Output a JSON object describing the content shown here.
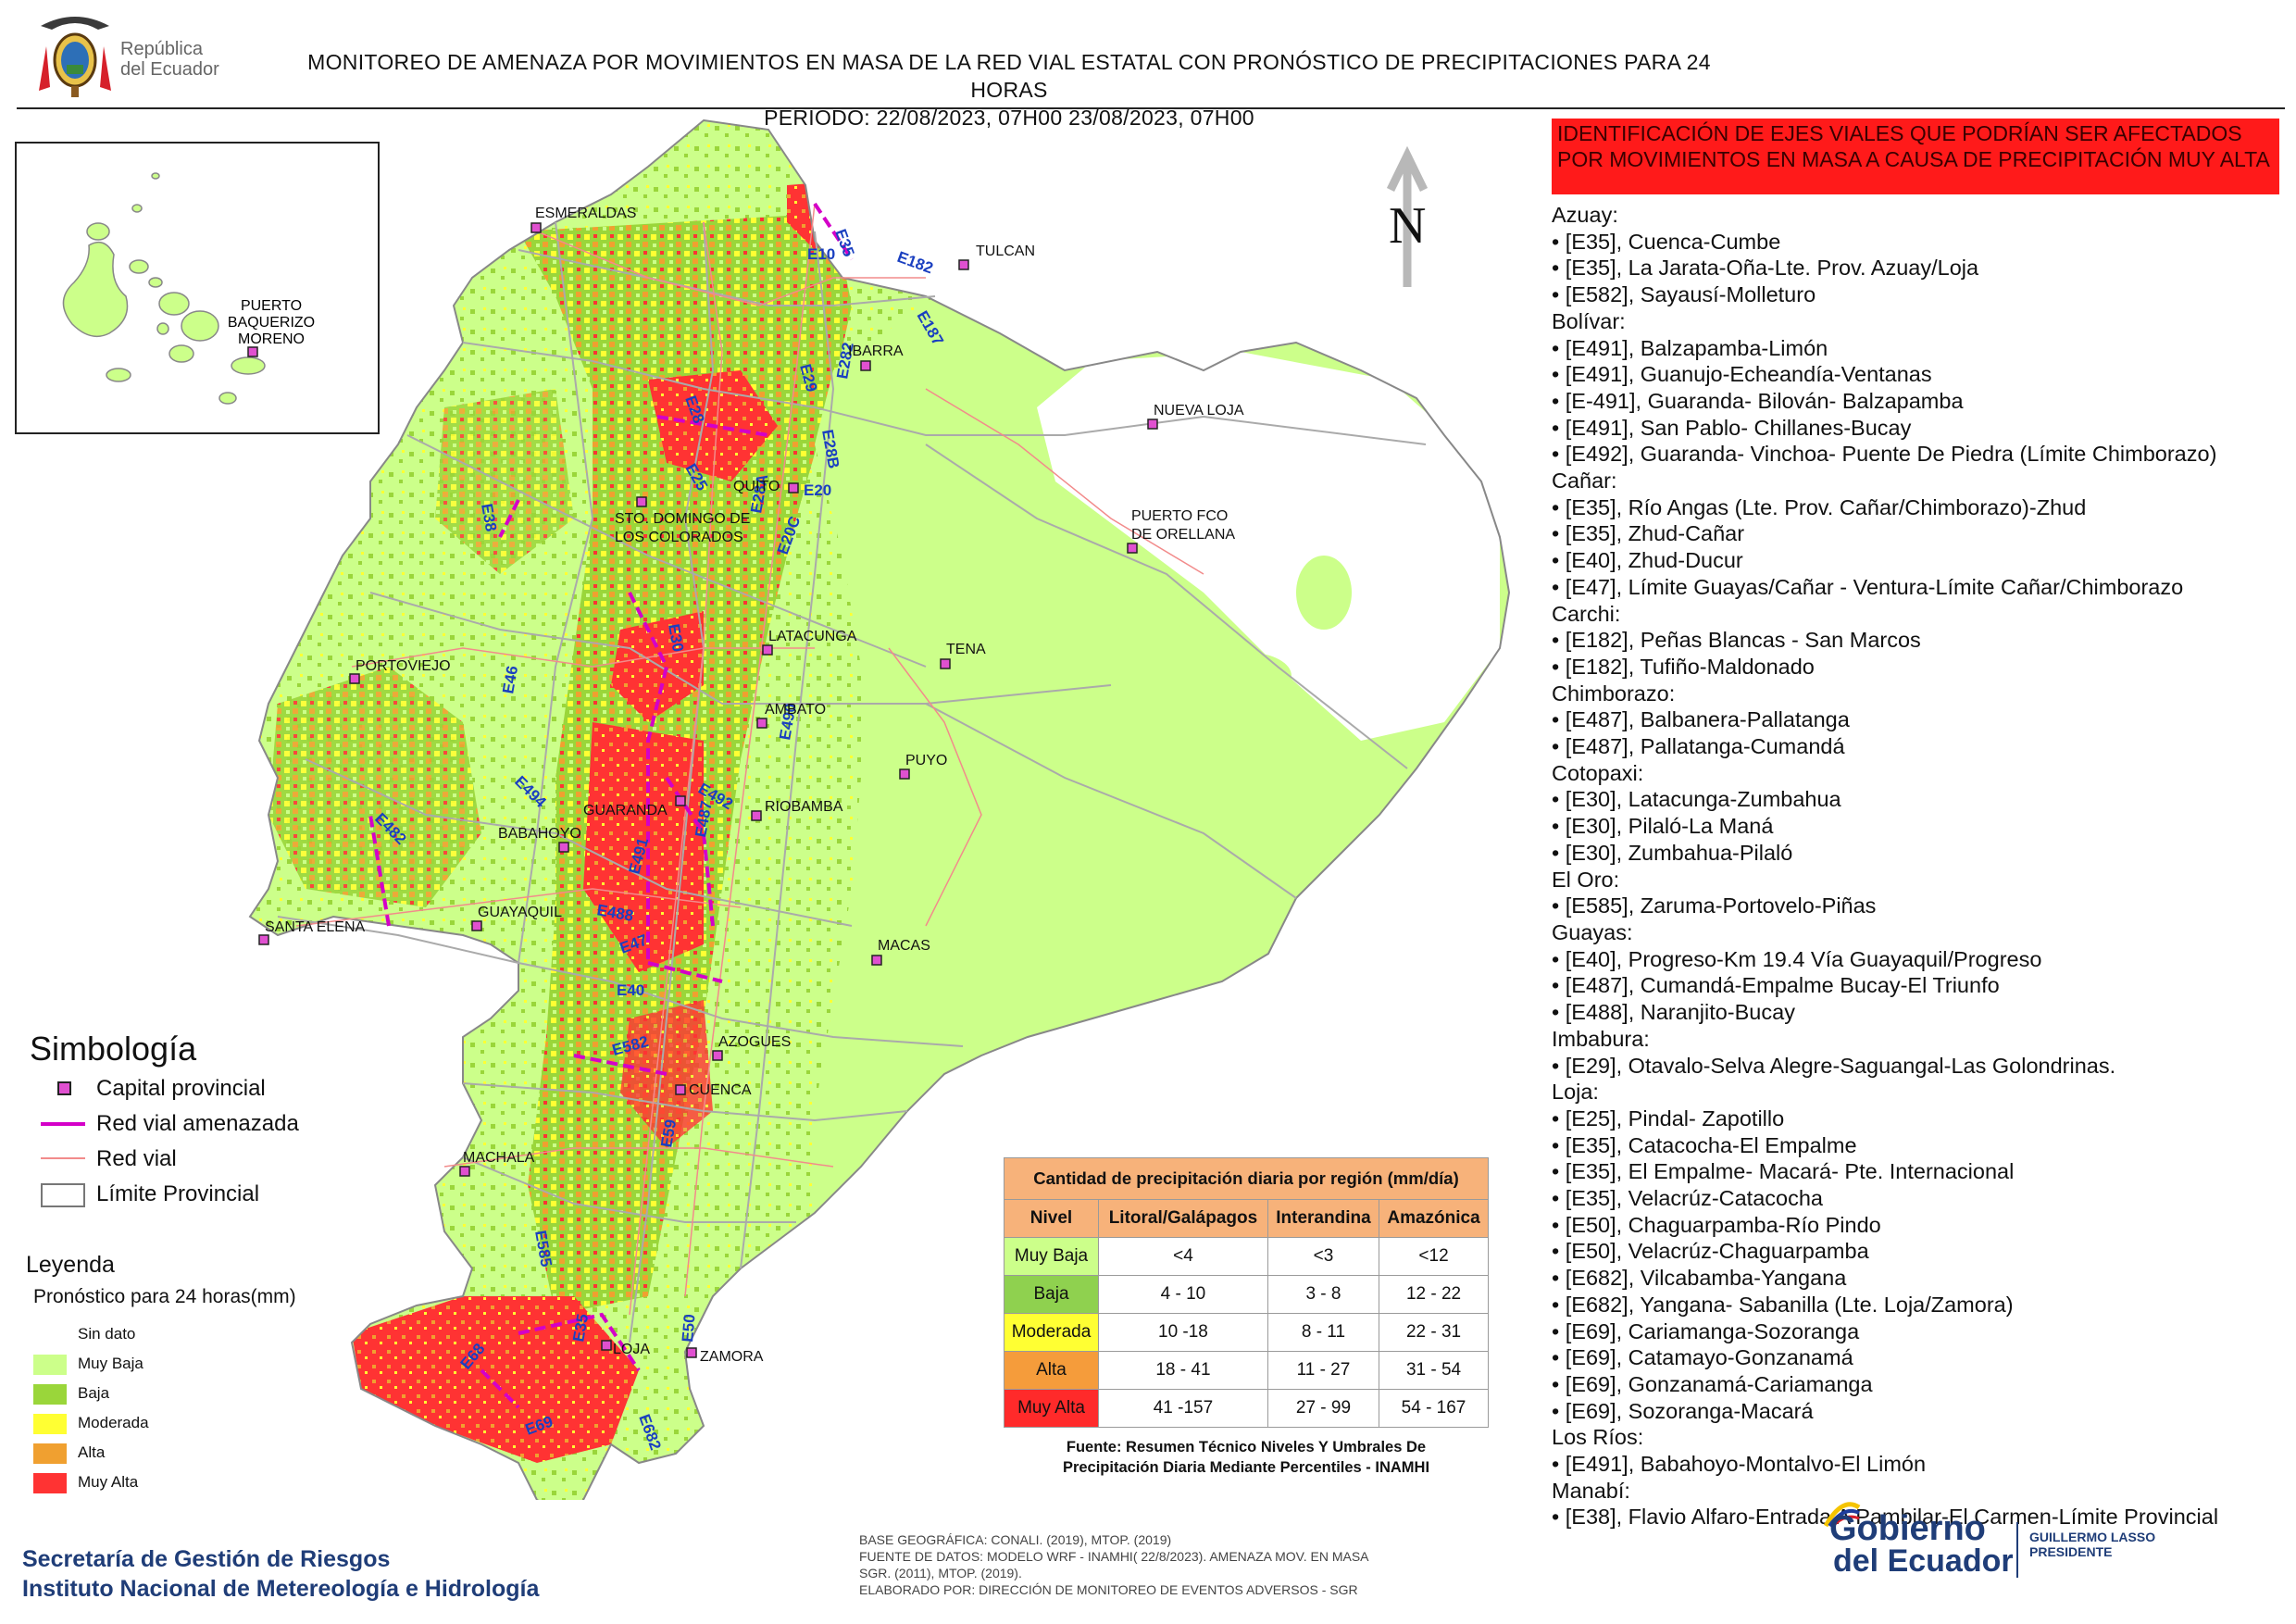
{
  "logo": {
    "line1": "República",
    "line2": "del Ecuador"
  },
  "header": {
    "title": "MONITOREO DE AMENAZA POR MOVIMIENTOS EN MASA DE LA RED VIAL  ESTATAL  CON PRONÓSTICO  DE  PRECIPITACIONES PARA 24 HORAS",
    "period": "PERIODO: 22/08/2023, 07H00 23/08/2023, 07H00"
  },
  "north_label": "N",
  "cities": [
    {
      "name": "ESMERALDAS"
    },
    {
      "name": "TULCAN"
    },
    {
      "name": "IBARRA"
    },
    {
      "name": "NUEVA LOJA"
    },
    {
      "name": "QUITO"
    },
    {
      "name": "STO. DOMINGO DE"
    },
    {
      "name": "LOS COLORADOS"
    },
    {
      "name": "PUERTO FCO"
    },
    {
      "name": "DE ORELLANA"
    },
    {
      "name": "LATACUNGA"
    },
    {
      "name": "TENA"
    },
    {
      "name": "PORTOVIEJO"
    },
    {
      "name": "AMBATO"
    },
    {
      "name": "PUYO"
    },
    {
      "name": "GUARANDA"
    },
    {
      "name": "RIOBAMBA"
    },
    {
      "name": "BABAHOYO"
    },
    {
      "name": "GUAYAQUIL"
    },
    {
      "name": "SANTA ELENA"
    },
    {
      "name": "MACAS"
    },
    {
      "name": "AZOGUES"
    },
    {
      "name": "CUENCA"
    },
    {
      "name": "MACHALA"
    },
    {
      "name": "LOJA"
    },
    {
      "name": "ZAMORA"
    },
    {
      "name": "PUERTO"
    },
    {
      "name": "BAQUERIZO"
    },
    {
      "name": "MORENO"
    }
  ],
  "road_labels": [
    "E10",
    "E182",
    "E187",
    "E35",
    "E29",
    "E28",
    "E282",
    "E28B",
    "E25",
    "E20",
    "E38",
    "E28A",
    "E20C",
    "E30",
    "E46",
    "E494",
    "E482",
    "E492",
    "E490",
    "E487",
    "E491",
    "E488",
    "E47",
    "E40",
    "E582",
    "E59",
    "E585",
    "E50",
    "E69",
    "E682",
    "E68",
    "E35"
  ],
  "symbology": {
    "title": "Simbología",
    "items": [
      {
        "label": "Capital provincial"
      },
      {
        "label": "Red vial amenazada"
      },
      {
        "label": "Red vial"
      },
      {
        "label": "Límite Provincial"
      }
    ]
  },
  "leyenda": {
    "title": "Leyenda",
    "subtitle": "Pronóstico para 24 horas(mm)",
    "items": [
      {
        "label": "Sin dato",
        "color": "#ffffff"
      },
      {
        "label": "Muy Baja",
        "color": "#ccff8a"
      },
      {
        "label": "Baja",
        "color": "#9ad63a"
      },
      {
        "label": "Moderada",
        "color": "#ffff33"
      },
      {
        "label": "Alta",
        "color": "#f0a030"
      },
      {
        "label": "Muy Alta",
        "color": "#ff3333"
      }
    ]
  },
  "precip_table": {
    "caption": "Cantidad de precipitación diaria por región (mm/día)",
    "headers": [
      "Nivel",
      "Litoral/Galápagos",
      "Interandina",
      "Amazónica"
    ],
    "rows": [
      {
        "nivel": "Muy Baja",
        "color": "#ccff8a",
        "litoral": "<4",
        "interandina": "<3",
        "amazonica": "<12"
      },
      {
        "nivel": "Baja",
        "color": "#8fd14f",
        "litoral": "4 - 10",
        "interandina": "3 - 8",
        "amazonica": "12 - 22"
      },
      {
        "nivel": "Moderada",
        "color": "#ffff33",
        "litoral": "10 -18",
        "interandina": "8 - 11",
        "amazonica": "22 - 31"
      },
      {
        "nivel": "Alta",
        "color": "#f59c3b",
        "litoral": "18 - 41",
        "interandina": "11 - 27",
        "amazonica": "31 - 54"
      },
      {
        "nivel": "Muy Alta",
        "color": "#ff2a2a",
        "litoral": "41 -157",
        "interandina": "27 - 99",
        "amazonica": "54 - 167"
      }
    ],
    "source_line1": "Fuente: Resumen Técnico Niveles Y Umbrales De",
    "source_line2": "Precipitación Diaria Mediante Percentiles - INAMHI"
  },
  "alert": {
    "header": "IDENTIFICACIÓN DE EJES VIALES QUE PODRÍAN SER AFECTADOS POR MOVIMIENTOS EN MASA A CAUSA DE PRECIPITACIÓN MUY ALTA"
  },
  "provinces": [
    {
      "name": "Azuay:",
      "roads": [
        "• [E35], Cuenca-Cumbe",
        "• [E35], La Jarata-Oña-Lte. Prov. Azuay/Loja",
        "• [E582], Sayausí-Molleturo"
      ]
    },
    {
      "name": "Bolívar:",
      "roads": [
        "• [E491], Balzapamba-Limón",
        "• [E491], Guanujo-Echeandía-Ventanas",
        "• [E-491], Guaranda- Bilován- Balzapamba",
        "• [E491], San Pablo- Chillanes-Bucay",
        "• [E492], Guaranda- Vinchoa- Puente De Piedra (Límite Chimborazo)"
      ]
    },
    {
      "name": "Cañar:",
      "roads": [
        "• [E35], Río Angas (Lte. Prov. Cañar/Chimborazo)-Zhud",
        "• [E35], Zhud-Cañar",
        "• [E40], Zhud-Ducur",
        "• [E47], Límite Guayas/Cañar - Ventura-Límite Cañar/Chimborazo"
      ]
    },
    {
      "name": "Carchi:",
      "roads": [
        "• [E182], Peñas Blancas - San Marcos",
        "• [E182], Tufiño-Maldonado"
      ]
    },
    {
      "name": "Chimborazo:",
      "roads": [
        "• [E487], Balbanera-Pallatanga",
        "• [E487], Pallatanga-Cumandá"
      ]
    },
    {
      "name": "Cotopaxi:",
      "roads": [
        "• [E30], Latacunga-Zumbahua",
        "• [E30], Pilaló-La Maná",
        "• [E30], Zumbahua-Pilaló"
      ]
    },
    {
      "name": "El Oro:",
      "roads": [
        "• [E585], Zaruma-Portovelo-Piñas"
      ]
    },
    {
      "name": "Guayas:",
      "roads": [
        "• [E40], Progreso-Km 19.4 Vía Guayaquil/Progreso",
        "• [E487], Cumandá-Empalme Bucay-El Triunfo",
        "• [E488], Naranjito-Bucay"
      ]
    },
    {
      "name": "Imbabura:",
      "roads": [
        "• [E29], Otavalo-Selva Alegre-Saguangal-Las Golondrinas."
      ]
    },
    {
      "name": "Loja:",
      "roads": [
        "• [E25], Pindal- Zapotillo",
        "• [E35], Catacocha-El Empalme",
        "• [E35], El Empalme- Macará- Pte. Internacional",
        "• [E35], Velacrúz-Catacocha",
        "• [E50], Chaguarpamba-Río Pindo",
        "• [E50], Velacrúz-Chaguarpamba",
        "• [E682], Vilcabamba-Yangana",
        "• [E682], Yangana- Sabanilla (Lte. Loja/Zamora)",
        "• [E69], Cariamanga-Sozoranga",
        "• [E69], Catamayo-Gonzanamá",
        "• [E69], Gonzanamá-Cariamanga",
        "• [E69], Sozoranga-Macará"
      ]
    },
    {
      "name": "Los Ríos:",
      "roads": [
        "• [E491], Babahoyo-Montalvo-El Limón"
      ]
    },
    {
      "name": "Manabí:",
      "roads": [
        "• [E38], Flavio Alfaro-Entrada A Pambilar-El Carmen-Límite Provincial"
      ]
    }
  ],
  "footer": {
    "org1": "Secretaría de Gestión de Riesgos",
    "org2": "Instituto Nacional de Metereología e Hidrología",
    "note1": "BASE GEOGRÁFICA: CONALI. (2019), MTOP. (2019)",
    "note2": "FUENTE DE DATOS: MODELO WRF - INAMHI( 22/8/2023).  AMENAZA MOV. EN MASA",
    "note3": "SGR. (2011), MTOP. (2019).",
    "note4": "ELABORADO POR: DIRECCIÓN DE MONITOREO DE EVENTOS ADVERSOS - SGR",
    "gob1": "Gobierno",
    "gob2": "del Ecuador",
    "gob3": "GUILLERMO LASSO",
    "gob4": "PRESIDENTE"
  }
}
